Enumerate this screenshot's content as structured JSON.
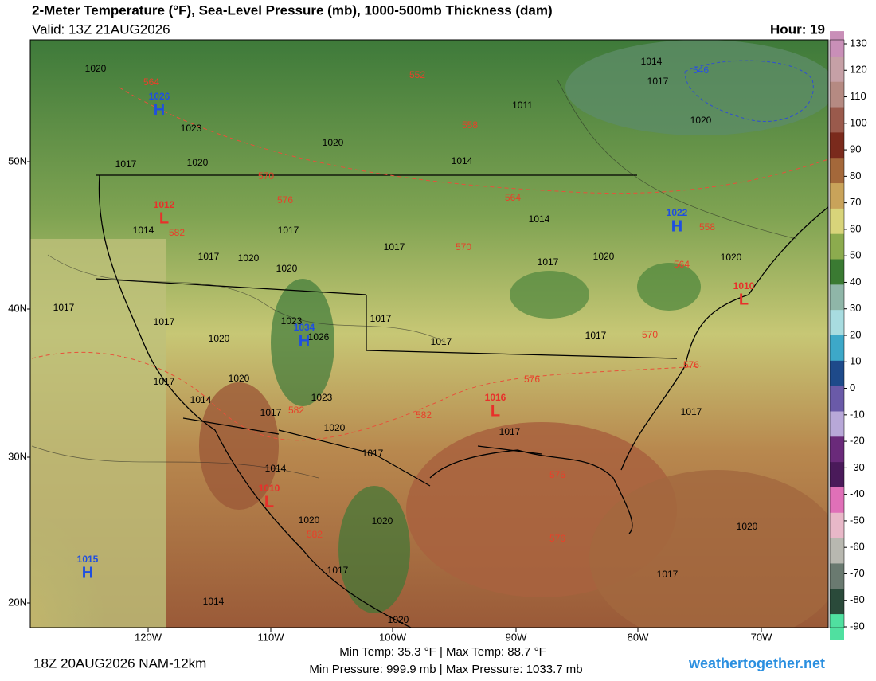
{
  "header": {
    "title": "2-Meter Temperature (°F), Sea-Level Pressure (mb), 1000-500mb Thickness (dam)",
    "valid": "Valid: 13Z 21AUG2026",
    "hour": "Hour: 19"
  },
  "map": {
    "lat_labels": [
      "50N",
      "40N",
      "30N",
      "20N"
    ],
    "lon_labels": [
      "120W",
      "110W",
      "100W",
      "90W",
      "80W",
      "70W"
    ],
    "isobar_labels": [
      "1020",
      "1023",
      "1017",
      "1020",
      "1020",
      "1014",
      "1011",
      "1014",
      "1017",
      "1020",
      "1014",
      "1017",
      "1020",
      "1017",
      "1020",
      "1017",
      "1014",
      "1017",
      "1020",
      "1020",
      "1017",
      "1017",
      "1020",
      "1023",
      "1026",
      "1017",
      "1017",
      "1017",
      "1017",
      "1014",
      "1020",
      "1017",
      "1023",
      "1020",
      "1017",
      "1017",
      "1017",
      "1014",
      "1020",
      "1020",
      "1017",
      "1020",
      "1017",
      "1014",
      "1020"
    ],
    "thickness_labels": [
      "564",
      "552",
      "558",
      "570",
      "576",
      "582",
      "570",
      "564",
      "558",
      "564",
      "570",
      "576",
      "576",
      "582",
      "582",
      "576",
      "576",
      "582"
    ],
    "blue_thickness_labels": [
      "546"
    ],
    "pressure_centers": [
      {
        "letter": "H",
        "value": "1026",
        "color": "#1f4fe0"
      },
      {
        "letter": "L",
        "value": "1012",
        "color": "#e8302a"
      },
      {
        "letter": "H",
        "value": "1034",
        "color": "#1f4fe0"
      },
      {
        "letter": "H",
        "value": "1022",
        "color": "#1f4fe0"
      },
      {
        "letter": "L",
        "value": "1016",
        "color": "#e8302a"
      },
      {
        "letter": "L",
        "value": "1010",
        "color": "#e8302a"
      },
      {
        "letter": "L",
        "value": "1010",
        "color": "#e8302a"
      },
      {
        "letter": "H",
        "value": "1015",
        "color": "#1f4fe0"
      }
    ]
  },
  "colorbar": {
    "ticks": [
      130,
      120,
      110,
      100,
      90,
      80,
      70,
      60,
      50,
      40,
      30,
      20,
      10,
      0,
      -10,
      -20,
      -30,
      -40,
      -50,
      -60,
      -70,
      -80,
      -90
    ],
    "colors": [
      "#c98fb8",
      "#c6a0a6",
      "#b58a82",
      "#9a5a4c",
      "#7a2a1c",
      "#a4683a",
      "#c9a35a",
      "#d8d47a",
      "#8cab4e",
      "#3a7a32",
      "#8fb6a8",
      "#a8dce0",
      "#3da8c8",
      "#1e4a8a",
      "#6a5aa8",
      "#b8a8d8",
      "#6a2a7a",
      "#4a1a5a",
      "#e070b8",
      "#e8b8c8",
      "#b8b8b0",
      "#6a7a70",
      "#2a4a3a",
      "#50e0a0"
    ]
  },
  "footer": {
    "run": "18Z 20AUG2026 NAM-12km",
    "temps": "Min Temp:  35.3 °F | Max Temp:  88.7 °F",
    "pressures": "Min Pressure: 999.9 mb | Max Pressure: 1033.7 mb",
    "site": "weathertogether.net"
  }
}
